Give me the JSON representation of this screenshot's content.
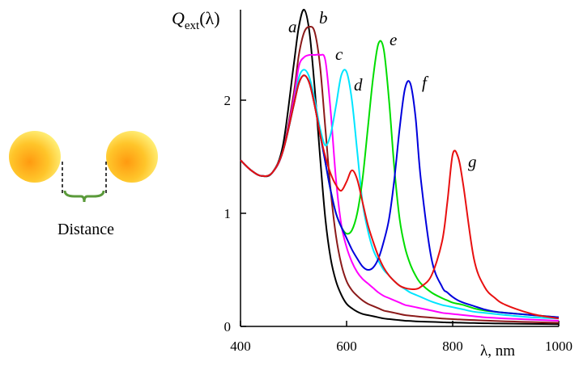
{
  "diagram": {
    "label": "Distance"
  },
  "chart_data": {
    "type": "line",
    "y_label": {
      "symbol": "Q",
      "subscript": "ext",
      "argument": "(λ)"
    },
    "x_label": "λ, nm",
    "x": [
      400,
      420,
      440,
      460,
      480,
      500,
      510,
      520,
      530,
      540,
      550,
      560,
      570,
      580,
      590,
      600,
      610,
      620,
      630,
      640,
      650,
      660,
      670,
      680,
      690,
      700,
      710,
      720,
      730,
      740,
      760,
      780,
      790,
      800,
      810,
      820,
      840,
      860,
      880,
      900,
      950,
      1000
    ],
    "series": [
      {
        "name": "a",
        "color": "#000000",
        "values": [
          1.47,
          1.38,
          1.33,
          1.36,
          1.6,
          2.3,
          2.65,
          2.8,
          2.6,
          2.1,
          1.5,
          0.95,
          0.6,
          0.4,
          0.28,
          0.2,
          0.16,
          0.13,
          0.11,
          0.1,
          0.09,
          0.08,
          0.07,
          0.065,
          0.06,
          0.055,
          0.05,
          0.048,
          0.045,
          0.043,
          0.04,
          0.037,
          0.035,
          0.034,
          0.033,
          0.032,
          0.03,
          0.028,
          0.026,
          0.025,
          0.022,
          0.02
        ]
      },
      {
        "name": "b",
        "color": "#8b1a1a",
        "values": [
          1.47,
          1.38,
          1.33,
          1.36,
          1.55,
          2.05,
          2.4,
          2.6,
          2.65,
          2.6,
          2.3,
          1.75,
          1.2,
          0.8,
          0.55,
          0.4,
          0.32,
          0.27,
          0.23,
          0.2,
          0.18,
          0.16,
          0.14,
          0.13,
          0.12,
          0.11,
          0.1,
          0.095,
          0.09,
          0.085,
          0.078,
          0.07,
          0.067,
          0.064,
          0.062,
          0.06,
          0.056,
          0.052,
          0.048,
          0.045,
          0.038,
          0.032
        ]
      },
      {
        "name": "c",
        "color": "#ff00ff",
        "values": [
          1.47,
          1.38,
          1.33,
          1.36,
          1.55,
          2.0,
          2.3,
          2.38,
          2.4,
          2.4,
          2.4,
          2.35,
          1.9,
          1.3,
          0.9,
          0.7,
          0.57,
          0.48,
          0.42,
          0.38,
          0.34,
          0.3,
          0.27,
          0.25,
          0.23,
          0.21,
          0.19,
          0.18,
          0.17,
          0.16,
          0.14,
          0.12,
          0.115,
          0.11,
          0.105,
          0.1,
          0.09,
          0.08,
          0.075,
          0.07,
          0.06,
          0.05
        ]
      },
      {
        "name": "d",
        "color": "#00e5ff",
        "values": [
          1.47,
          1.38,
          1.33,
          1.36,
          1.55,
          1.95,
          2.2,
          2.27,
          2.2,
          2.0,
          1.75,
          1.6,
          1.7,
          1.95,
          2.22,
          2.25,
          2.0,
          1.55,
          1.1,
          0.85,
          0.68,
          0.58,
          0.5,
          0.45,
          0.4,
          0.36,
          0.33,
          0.3,
          0.28,
          0.26,
          0.22,
          0.19,
          0.18,
          0.17,
          0.16,
          0.15,
          0.13,
          0.12,
          0.11,
          0.1,
          0.08,
          0.07
        ]
      },
      {
        "name": "e",
        "color": "#00dd00",
        "values": [
          1.47,
          1.38,
          1.33,
          1.36,
          1.55,
          1.95,
          2.15,
          2.22,
          2.15,
          1.95,
          1.7,
          1.45,
          1.2,
          1.0,
          0.88,
          0.82,
          0.85,
          1.0,
          1.3,
          1.75,
          2.2,
          2.5,
          2.45,
          2.0,
          1.4,
          0.95,
          0.7,
          0.55,
          0.45,
          0.38,
          0.3,
          0.25,
          0.23,
          0.21,
          0.2,
          0.19,
          0.16,
          0.14,
          0.13,
          0.12,
          0.1,
          0.08
        ]
      },
      {
        "name": "f",
        "color": "#0000dd",
        "values": [
          1.47,
          1.38,
          1.33,
          1.36,
          1.55,
          1.95,
          2.15,
          2.22,
          2.15,
          1.95,
          1.7,
          1.45,
          1.2,
          1.0,
          0.88,
          0.78,
          0.68,
          0.6,
          0.53,
          0.5,
          0.52,
          0.6,
          0.75,
          0.95,
          1.3,
          1.75,
          2.1,
          2.15,
          1.85,
          1.3,
          0.6,
          0.35,
          0.3,
          0.26,
          0.23,
          0.21,
          0.18,
          0.15,
          0.13,
          0.12,
          0.1,
          0.08
        ]
      },
      {
        "name": "g",
        "color": "#e81010",
        "values": [
          1.47,
          1.38,
          1.33,
          1.36,
          1.55,
          1.95,
          2.15,
          2.22,
          2.15,
          1.95,
          1.7,
          1.5,
          1.35,
          1.25,
          1.2,
          1.28,
          1.38,
          1.3,
          1.1,
          0.9,
          0.75,
          0.62,
          0.52,
          0.45,
          0.4,
          0.36,
          0.34,
          0.33,
          0.33,
          0.35,
          0.45,
          0.75,
          1.1,
          1.52,
          1.5,
          1.25,
          0.6,
          0.35,
          0.25,
          0.19,
          0.11,
          0.07
        ]
      }
    ],
    "xlim": [
      400,
      1000
    ],
    "ylim": [
      0,
      2.8
    ],
    "xticks": [
      400,
      600,
      800,
      1000
    ],
    "yticks": [
      0,
      1,
      2
    ]
  }
}
